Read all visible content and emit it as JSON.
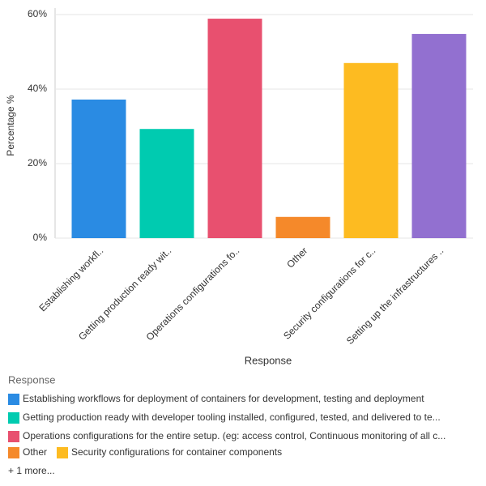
{
  "chart_data": {
    "type": "bar",
    "y_label": "Percentage %",
    "x_label": "Response",
    "categories": [
      "Establishing workfl..",
      "Getting production ready wit..",
      "Operations configurations fo..",
      "Other",
      "Security configurations for c..",
      "Setting up the infrastructures .."
    ],
    "values": [
      37.2,
      29.3,
      58.9,
      5.7,
      47.0,
      54.8
    ],
    "colors": [
      "#2a8be3",
      "#00cbb0",
      "#e8506f",
      "#f5892a",
      "#fdbb21",
      "#9270d0"
    ],
    "ylim": [
      0,
      60
    ],
    "yticks": [
      {
        "value": 0,
        "label": "0%"
      },
      {
        "value": 20,
        "label": "20%"
      },
      {
        "value": 40,
        "label": "40%"
      },
      {
        "value": 60,
        "label": "60%"
      }
    ],
    "grid": true,
    "legend": {
      "title": "Response",
      "items": [
        {
          "label": "Establishing workflows for deployment of containers for development, testing and deployment",
          "color": "#2a8be3"
        },
        {
          "label": "Getting production ready with developer tooling installed, configured, tested, and delivered to te...",
          "color": "#00cbb0"
        },
        {
          "label": "Operations configurations for the entire setup. (eg: access control, Continuous monitoring of all c...",
          "color": "#e8506f"
        },
        {
          "label": "Other",
          "color": "#f5892a"
        },
        {
          "label": "Security configurations for container components",
          "color": "#fdbb21"
        }
      ],
      "more": "+ 1 more..."
    }
  }
}
